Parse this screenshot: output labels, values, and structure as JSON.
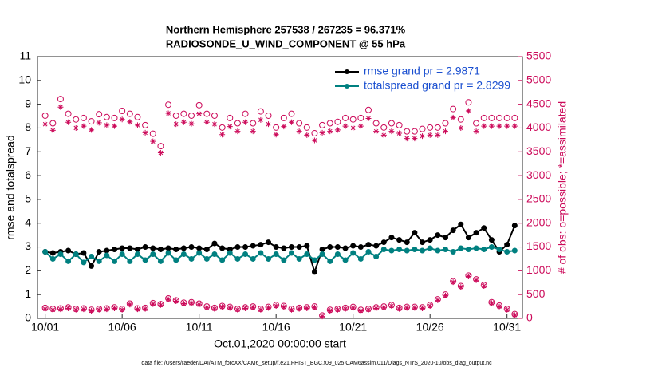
{
  "chart_data": {
    "type": "line",
    "title": "Northern Hemisphere 257538 / 267235 = 96.371%",
    "subtitle": "RADIOSONDE_U_WIND_COMPONENT @ 55 hPa",
    "xlabel": "Oct.01,2020 00:00:00 start",
    "ylabel": "rmse and totalspread",
    "y2label": "# of obs: o=possible; *=assimilated",
    "footnote": "data file: /Users/raeder/DAI/ATM_forcXX/CAM6_setup/f.e21.FHIST_BGC.f09_025.CAM6assim.011/Diags_NTrS_2020-10/obs_diag_output.nc",
    "legend": "upper right",
    "y2color": "#cc0a5a",
    "xlim": [
      -0.5,
      31
    ],
    "xticks": [
      {
        "value": 0,
        "label": "10/01"
      },
      {
        "value": 5,
        "label": "10/06"
      },
      {
        "value": 10,
        "label": "10/11"
      },
      {
        "value": 15,
        "label": "10/16"
      },
      {
        "value": 20,
        "label": "10/21"
      },
      {
        "value": 25,
        "label": "10/26"
      },
      {
        "value": 30,
        "label": "10/31"
      }
    ],
    "ylim": [
      0,
      11
    ],
    "yticks": [
      0,
      1,
      2,
      3,
      4,
      5,
      6,
      7,
      8,
      9,
      10,
      11
    ],
    "y2lim": [
      0,
      5500
    ],
    "y2ticks": [
      0,
      500,
      1000,
      1500,
      2000,
      2500,
      3000,
      3500,
      4000,
      4500,
      5000,
      5500
    ],
    "x": [
      0,
      0.5,
      1,
      1.5,
      2,
      2.5,
      3,
      3.5,
      4,
      4.5,
      5,
      5.5,
      6,
      6.5,
      7,
      7.5,
      8,
      8.5,
      9,
      9.5,
      10,
      10.5,
      11,
      11.5,
      12,
      12.5,
      13,
      13.5,
      14,
      14.5,
      15,
      15.5,
      16,
      16.5,
      17,
      17.5,
      18,
      18.5,
      19,
      19.5,
      20,
      20.5,
      21,
      21.5,
      22,
      22.5,
      23,
      23.5,
      24,
      24.5,
      25,
      25.5,
      26,
      26.5,
      27,
      27.5,
      28,
      28.5,
      29,
      29.5,
      30,
      30.5
    ],
    "series": [
      {
        "name": "rmse grand pr = 2.9871",
        "color": "#000000",
        "marker": "dot",
        "values": [
          2.8,
          2.75,
          2.8,
          2.85,
          2.7,
          2.75,
          2.2,
          2.8,
          2.85,
          2.9,
          2.95,
          2.95,
          2.9,
          3.0,
          2.95,
          2.9,
          2.95,
          2.9,
          2.95,
          3.0,
          2.95,
          2.9,
          3.15,
          2.95,
          2.9,
          3.0,
          3.0,
          3.05,
          3.1,
          3.2,
          3.0,
          2.95,
          3.0,
          3.0,
          3.05,
          1.95,
          2.9,
          3.0,
          3.0,
          2.95,
          3.05,
          3.0,
          3.1,
          3.05,
          3.2,
          3.4,
          3.3,
          3.2,
          3.6,
          3.2,
          3.3,
          3.5,
          3.4,
          3.7,
          3.95,
          3.4,
          3.6,
          3.8,
          3.3,
          2.8,
          3.1,
          3.9
        ]
      },
      {
        "name": "totalspread grand pr = 2.8299",
        "color": "#008080",
        "marker": "dot",
        "values": [
          2.8,
          2.5,
          2.7,
          2.4,
          2.7,
          2.35,
          2.6,
          2.4,
          2.65,
          2.4,
          2.7,
          2.4,
          2.7,
          2.45,
          2.7,
          2.4,
          2.75,
          2.45,
          2.7,
          2.5,
          2.75,
          2.5,
          2.7,
          2.45,
          2.75,
          2.5,
          2.7,
          2.5,
          2.75,
          2.5,
          2.7,
          2.45,
          2.75,
          2.5,
          2.7,
          2.45,
          2.7,
          2.4,
          2.7,
          2.45,
          2.75,
          2.5,
          2.8,
          2.6,
          2.9,
          2.85,
          2.9,
          2.85,
          2.9,
          2.85,
          2.95,
          2.85,
          2.9,
          2.8,
          2.95,
          2.9,
          2.95,
          2.9,
          3.0,
          2.9,
          2.8,
          2.85
        ]
      },
      {
        "axis": "y2",
        "color": "#cc0a5a",
        "marker": "o",
        "values": [
          4260,
          4100,
          4610,
          4300,
          4180,
          4210,
          4140,
          4290,
          4230,
          4210,
          4360,
          4300,
          4230,
          4060,
          3880,
          3620,
          4490,
          4260,
          4300,
          4260,
          4480,
          4300,
          4260,
          4010,
          4210,
          4100,
          4300,
          4100,
          4350,
          4260,
          4010,
          4210,
          4300,
          4100,
          4010,
          3890,
          4060,
          4100,
          4130,
          4210,
          4180,
          4210,
          4380,
          4100,
          4010,
          4100,
          4060,
          3930,
          3930,
          3980,
          4010,
          4010,
          4100,
          4400,
          4180,
          4540,
          4100,
          4210,
          4210,
          4210,
          4210,
          4210
        ]
      },
      {
        "axis": "y2",
        "color": "#cc0a5a",
        "marker": "*",
        "values": [
          4080,
          3950,
          4440,
          4120,
          4000,
          4040,
          3960,
          4110,
          4060,
          4040,
          4180,
          4130,
          4060,
          3900,
          3720,
          3480,
          4310,
          4080,
          4120,
          4090,
          4300,
          4120,
          4080,
          3860,
          4030,
          3930,
          4120,
          3930,
          4170,
          4080,
          3860,
          4030,
          4120,
          3930,
          3850,
          3740,
          3900,
          3930,
          3960,
          4040,
          4000,
          4040,
          4200,
          3930,
          3850,
          3930,
          3890,
          3780,
          3780,
          3830,
          3850,
          3850,
          3930,
          4220,
          4000,
          4360,
          3930,
          4040,
          4040,
          4040,
          4040,
          4040
        ]
      },
      {
        "axis": "y2",
        "color": "#cc0a5a",
        "marker": "o",
        "values": [
          220,
          200,
          210,
          230,
          200,
          210,
          180,
          200,
          210,
          230,
          200,
          310,
          210,
          220,
          320,
          300,
          420,
          380,
          330,
          340,
          310,
          250,
          220,
          260,
          240,
          200,
          230,
          250,
          200,
          240,
          280,
          260,
          200,
          220,
          230,
          250,
          60,
          180,
          200,
          220,
          240,
          180,
          200,
          230,
          250,
          280,
          220,
          240,
          240,
          230,
          280,
          400,
          500,
          780,
          680,
          900,
          820,
          700,
          340,
          270,
          200,
          90
        ]
      },
      {
        "axis": "y2",
        "color": "#cc0a5a",
        "marker": "*",
        "values": [
          200,
          180,
          190,
          210,
          180,
          190,
          160,
          180,
          190,
          210,
          180,
          290,
          190,
          200,
          300,
          280,
          400,
          360,
          310,
          320,
          290,
          230,
          200,
          240,
          220,
          180,
          210,
          230,
          180,
          220,
          260,
          240,
          180,
          200,
          210,
          230,
          40,
          160,
          180,
          200,
          220,
          160,
          180,
          210,
          230,
          260,
          200,
          220,
          220,
          210,
          260,
          380,
          480,
          760,
          660,
          880,
          800,
          680,
          320,
          250,
          180,
          70
        ]
      }
    ]
  }
}
